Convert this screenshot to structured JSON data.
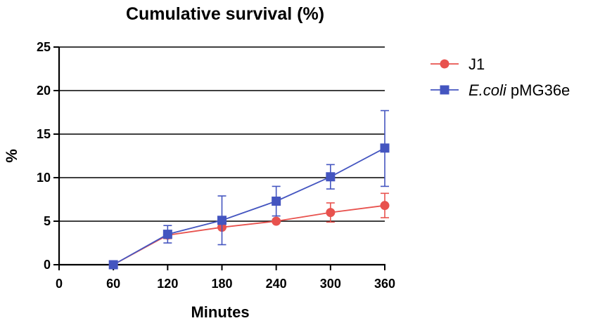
{
  "chart_data": {
    "type": "line",
    "title": "Cumulative survival (%)",
    "xlabel": "Minutes",
    "ylabel": "%",
    "xlim": [
      0,
      360
    ],
    "ylim": [
      0,
      25
    ],
    "xticks": [
      0,
      60,
      120,
      180,
      240,
      300,
      360
    ],
    "yticks": [
      0,
      5,
      10,
      15,
      20,
      25
    ],
    "grid": "horizontal",
    "legend_position": "right",
    "series": [
      {
        "name_italic": "",
        "name_plain": "J1",
        "color": "#e8524e",
        "marker": "circle",
        "x": [
          60,
          120,
          180,
          240,
          300,
          360
        ],
        "y": [
          0,
          3.4,
          4.3,
          5.0,
          6.0,
          6.8
        ],
        "err_upper": [
          0,
          0.4,
          0,
          0,
          1.1,
          1.4
        ],
        "err_lower": [
          0,
          0.4,
          0,
          0,
          1.1,
          1.4
        ]
      },
      {
        "name_italic": "E.coli",
        "name_plain": " pMG36e",
        "color": "#4455c0",
        "marker": "square",
        "x": [
          60,
          120,
          180,
          240,
          300,
          360
        ],
        "y": [
          0,
          3.5,
          5.1,
          7.3,
          10.1,
          13.4
        ],
        "err_upper": [
          0,
          1.0,
          2.8,
          1.7,
          1.4,
          4.3
        ],
        "err_lower": [
          0,
          1.0,
          2.8,
          1.7,
          1.4,
          4.4
        ]
      }
    ]
  }
}
